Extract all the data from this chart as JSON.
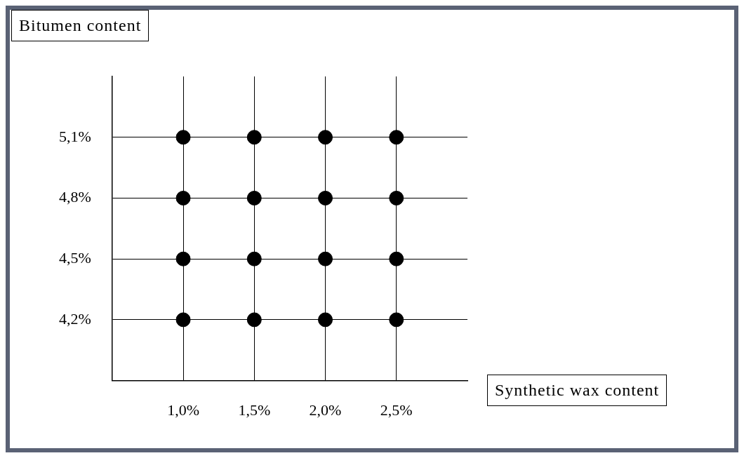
{
  "chart_data": {
    "type": "scatter",
    "xlabel": "Synthetic wax content",
    "ylabel": "Bitumen content",
    "series": [
      {
        "color": "#000000",
        "x": [
          1.0,
          1.5,
          2.0,
          2.5,
          1.0,
          1.5,
          2.0,
          2.5,
          1.0,
          1.5,
          2.0,
          2.5,
          1.0,
          1.5,
          2.0,
          2.5
        ],
        "values": [
          5.1,
          5.1,
          5.1,
          5.1,
          4.8,
          4.8,
          4.8,
          4.8,
          4.5,
          4.5,
          4.5,
          4.5,
          4.2,
          4.2,
          4.2,
          4.2
        ]
      }
    ],
    "xlim": [
      0.5,
      3.0
    ],
    "ylim": [
      3.9,
      5.4
    ],
    "xticks": [
      {
        "value": 1.0,
        "label": "1,0%"
      },
      {
        "value": 1.5,
        "label": "1,5%"
      },
      {
        "value": 2.0,
        "label": "2,0%"
      },
      {
        "value": 2.5,
        "label": "2,5%"
      }
    ],
    "yticks": [
      {
        "value": 4.2,
        "label": "4,2%"
      },
      {
        "value": 4.5,
        "label": "4,5%"
      },
      {
        "value": 4.8,
        "label": "4,8%"
      },
      {
        "value": 5.1,
        "label": "5,1%"
      }
    ],
    "grid": true,
    "marker": "circle",
    "legend": false
  }
}
